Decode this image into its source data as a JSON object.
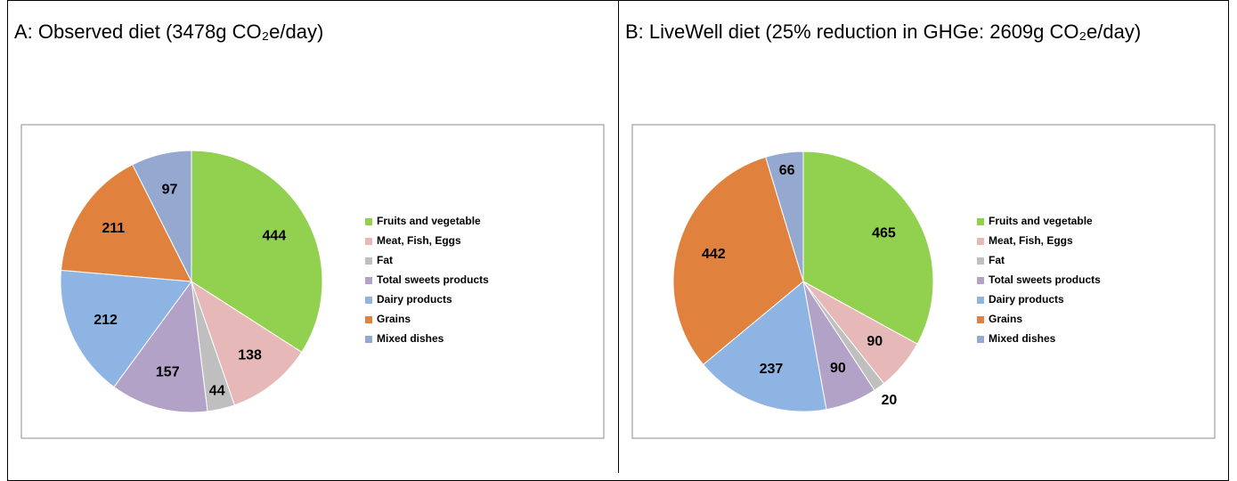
{
  "chart_data": [
    {
      "type": "pie",
      "title": "A: Observed diet (3478g CO₂e/day)",
      "categories": [
        "Fruits and vegetable",
        "Meat, Fish, Eggs",
        "Fat",
        "Total sweets products",
        "Dairy products",
        "Grains",
        "Mixed dishes"
      ],
      "values": [
        444,
        138,
        44,
        157,
        212,
        211,
        97
      ],
      "colors": [
        "#92d050",
        "#e6b9b8",
        "#bfbfbf",
        "#b3a2c7",
        "#8db4e2",
        "#e0823d",
        "#95a9d0"
      ]
    },
    {
      "type": "pie",
      "title": "B: LiveWell diet (25% reduction in GHGe: 2609g CO₂e/day)",
      "categories": [
        "Fruits and vegetable",
        "Meat, Fish, Eggs",
        "Fat",
        "Total sweets products",
        "Dairy products",
        "Grains",
        "Mixed dishes"
      ],
      "values": [
        465,
        90,
        20,
        90,
        237,
        442,
        66
      ],
      "colors": [
        "#92d050",
        "#e6b9b8",
        "#bfbfbf",
        "#b3a2c7",
        "#8db4e2",
        "#e0823d",
        "#95a9d0"
      ]
    }
  ]
}
